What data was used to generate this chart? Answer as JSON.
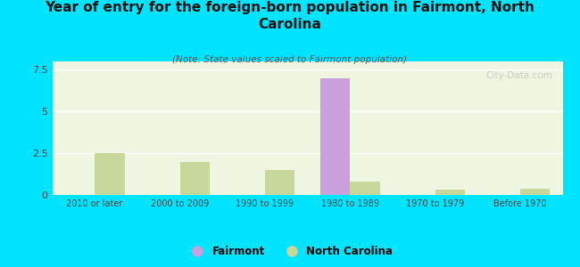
{
  "title": "Year of entry for the foreign-born population in Fairmont, North\nCarolina",
  "subtitle": "(Note: State values scaled to Fairmont population)",
  "categories": [
    "2010 or later",
    "2000 to 2009",
    "1990 to 1999",
    "1980 to 1989",
    "1970 to 1979",
    "Before 1970"
  ],
  "fairmont_values": [
    0,
    0,
    0,
    7.0,
    0,
    0
  ],
  "nc_values": [
    2.5,
    2.0,
    1.5,
    0.8,
    0.3,
    0.4
  ],
  "fairmont_color": "#c9a0dc",
  "nc_color": "#c8d89a",
  "background_color": "#00e5ff",
  "plot_bg_color": "#eef5e0",
  "ylim": [
    0,
    8
  ],
  "yticks": [
    0,
    2.5,
    5,
    7.5
  ],
  "bar_width": 0.35,
  "watermark": "City-Data.com"
}
